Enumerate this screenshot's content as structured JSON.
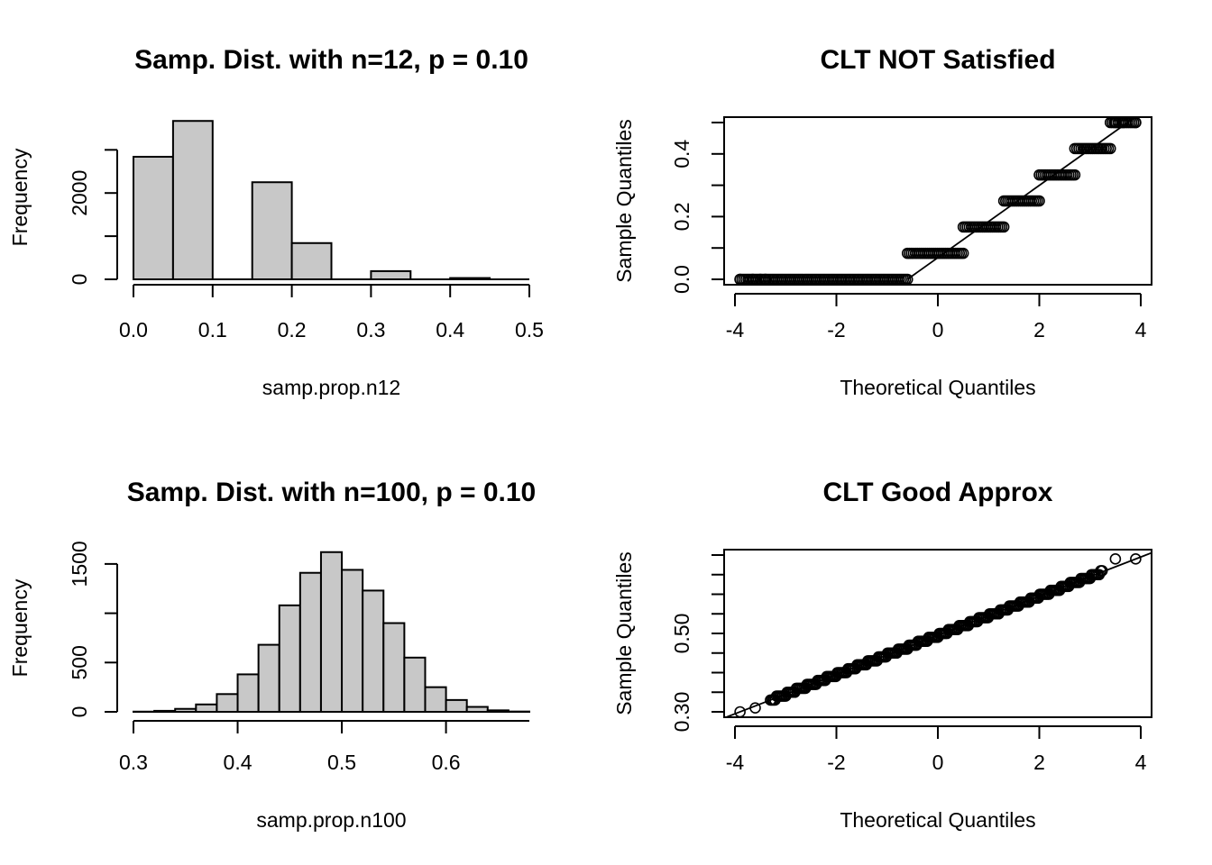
{
  "chart_data": [
    {
      "type": "bar",
      "subtype": "histogram",
      "title": "Samp. Dist. with n=12, p = 0.10",
      "xlabel": "samp.prop.n12",
      "ylabel": "Frequency",
      "xlim": [
        0,
        0.5
      ],
      "ylim": [
        0,
        3800
      ],
      "xticks": [
        "0.0",
        "0.1",
        "0.2",
        "0.3",
        "0.4",
        "0.5"
      ],
      "yticks": [
        "0",
        "2000"
      ],
      "bins": [
        [
          0,
          0.05
        ],
        [
          0.05,
          0.1
        ],
        [
          0.1,
          0.15
        ],
        [
          0.15,
          0.2
        ],
        [
          0.2,
          0.25
        ],
        [
          0.25,
          0.3
        ],
        [
          0.3,
          0.35
        ],
        [
          0.35,
          0.4
        ],
        [
          0.4,
          0.45
        ],
        [
          0.45,
          0.5
        ]
      ],
      "values": [
        2840,
        3670,
        0,
        2250,
        840,
        0,
        190,
        0,
        30,
        0
      ],
      "fill": "#c8c8c8"
    },
    {
      "type": "scatter",
      "subtype": "qq-plot",
      "title": "CLT NOT Satisfied",
      "xlabel": "Theoretical Quantiles",
      "ylabel": "Sample Quantiles",
      "xlim": [
        -4,
        4
      ],
      "ylim": [
        0,
        0.5
      ],
      "xticks": [
        "-4",
        "-2",
        "0",
        "2",
        "4"
      ],
      "yticks": [
        "0.0",
        "0.2",
        "0.4"
      ],
      "levels": [
        {
          "y": 0.0,
          "x_from": -3.9,
          "x_to": -0.6
        },
        {
          "y": 0.083,
          "x_from": -0.6,
          "x_to": 0.5
        },
        {
          "y": 0.167,
          "x_from": 0.5,
          "x_to": 1.3
        },
        {
          "y": 0.25,
          "x_from": 1.3,
          "x_to": 2.0
        },
        {
          "y": 0.333,
          "x_from": 2.0,
          "x_to": 2.7
        },
        {
          "y": 0.417,
          "x_from": 2.7,
          "x_to": 3.4
        },
        {
          "y": 0.5,
          "x_from": 3.4,
          "x_to": 3.9
        }
      ],
      "reference_line": {
        "x1": -0.6,
        "y1": 0.0,
        "x2": 4.0,
        "y2": 0.53
      }
    },
    {
      "type": "bar",
      "subtype": "histogram",
      "title": "Samp. Dist. with n=100, p = 0.10",
      "xlabel": "samp.prop.n100",
      "ylabel": "Frequency",
      "xlim": [
        0.3,
        0.68
      ],
      "ylim": [
        0,
        1700
      ],
      "xticks": [
        "0.3",
        "0.4",
        "0.5",
        "0.6"
      ],
      "yticks": [
        "0",
        "500",
        "1500"
      ],
      "bins": [
        [
          0.3,
          0.32
        ],
        [
          0.32,
          0.34
        ],
        [
          0.34,
          0.36
        ],
        [
          0.36,
          0.38
        ],
        [
          0.38,
          0.4
        ],
        [
          0.4,
          0.42
        ],
        [
          0.42,
          0.44
        ],
        [
          0.44,
          0.46
        ],
        [
          0.46,
          0.48
        ],
        [
          0.48,
          0.5
        ],
        [
          0.5,
          0.52
        ],
        [
          0.52,
          0.54
        ],
        [
          0.54,
          0.56
        ],
        [
          0.56,
          0.58
        ],
        [
          0.58,
          0.6
        ],
        [
          0.6,
          0.62
        ],
        [
          0.62,
          0.64
        ],
        [
          0.64,
          0.66
        ],
        [
          0.66,
          0.68
        ]
      ],
      "values": [
        2,
        10,
        30,
        75,
        180,
        380,
        680,
        1080,
        1410,
        1620,
        1440,
        1230,
        900,
        550,
        250,
        120,
        50,
        15,
        3
      ],
      "fill": "#c8c8c8"
    },
    {
      "type": "scatter",
      "subtype": "qq-plot",
      "title": "CLT Good Approx",
      "xlabel": "Theoretical Quantiles",
      "ylabel": "Sample Quantiles",
      "xlim": [
        -4,
        4
      ],
      "ylim": [
        0.3,
        0.7
      ],
      "xticks": [
        "-4",
        "-2",
        "0",
        "2",
        "4"
      ],
      "yticks": [
        "0.30",
        "0.50"
      ],
      "trend": {
        "intercept": 0.495,
        "slope": 0.05,
        "step": 0.01
      },
      "outliers": [
        {
          "x": -3.9,
          "y": 0.3
        },
        {
          "x": -3.6,
          "y": 0.31
        },
        {
          "x": 3.5,
          "y": 0.69
        },
        {
          "x": 3.9,
          "y": 0.69
        }
      ],
      "reference_line": {
        "x1": -4.5,
        "y1": 0.27,
        "x2": 4.5,
        "y2": 0.72
      }
    }
  ]
}
